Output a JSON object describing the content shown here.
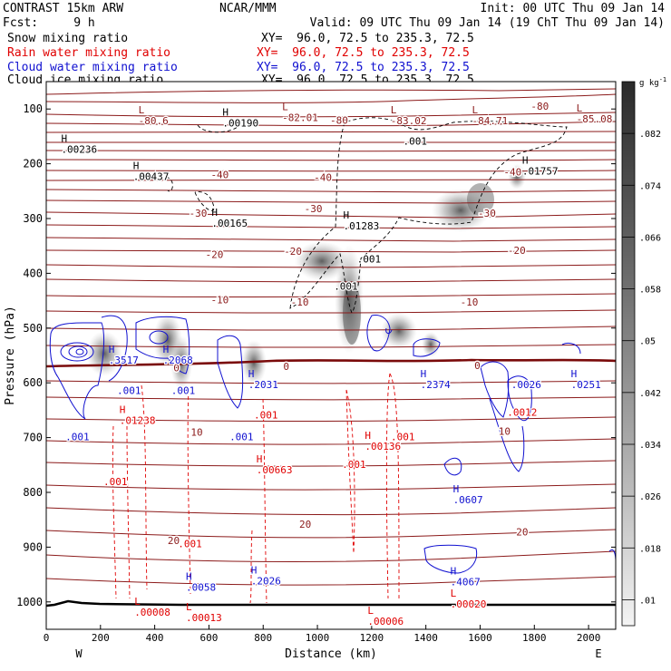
{
  "header": {
    "left_line1": "CONTRAST 15km ARW",
    "center_line1": "NCAR/MMM",
    "right_line1": "Init: 00 UTC Thu 09 Jan 14",
    "left_line2": "Fcst:     9 h",
    "right_line2": "Valid: 09 UTC Thu 09 Jan 14 (19 ChT Thu 09 Jan 14)",
    "fields": [
      {
        "name": "Snow mixing ratio",
        "xy": "XY=  96.0, 72.5 to 235.3, 72.5",
        "color": "#000000"
      },
      {
        "name": "Rain water mixing ratio",
        "xy": "XY=  96.0, 72.5 to 235.3, 72.5",
        "color": "#e00000"
      },
      {
        "name": "Cloud water mixing ratio",
        "xy": "XY=  96.0, 72.5 to 235.3, 72.5",
        "color": "#1010d0"
      },
      {
        "name": "Cloud ice mixing ratio",
        "xy": "XY=  96.0, 72.5 to 235.3, 72.5",
        "color": "#000000"
      }
    ]
  },
  "chart_data": {
    "type": "contour cross-section",
    "xlabel": "Distance (km)",
    "ylabel": "Pressure (hPa)",
    "xlim": [
      0,
      2100
    ],
    "ylim": [
      1050,
      50
    ],
    "x_ticks": [
      0,
      200,
      400,
      600,
      800,
      1000,
      1200,
      1400,
      1600,
      1800,
      2000
    ],
    "y_ticks": [
      100,
      200,
      300,
      400,
      500,
      600,
      700,
      800,
      900,
      1000
    ],
    "x_end_labels": {
      "left": "W",
      "right": "E"
    },
    "colorbar": {
      "unit": "g kg",
      "unit_exp": "-1",
      "ticks": [
        ".082",
        ".074",
        ".066",
        ".058",
        ".05",
        ".042",
        ".034",
        ".026",
        ".018",
        ".01"
      ]
    },
    "temperature_contours": [
      {
        "value": "-80",
        "x": 1080,
        "p": 120
      },
      {
        "value": "-80",
        "x": 1820,
        "p": 95
      },
      {
        "value": "-40",
        "x": 640,
        "p": 220
      },
      {
        "value": "-40",
        "x": 1020,
        "p": 225
      },
      {
        "value": "-40",
        "x": 1720,
        "p": 215
      },
      {
        "value": "-30",
        "x": 560,
        "p": 290
      },
      {
        "value": "-30",
        "x": 985,
        "p": 282
      },
      {
        "value": "-30",
        "x": 1625,
        "p": 290
      },
      {
        "value": "-20",
        "x": 620,
        "p": 365
      },
      {
        "value": "-20",
        "x": 910,
        "p": 360
      },
      {
        "value": "-20",
        "x": 1735,
        "p": 358
      },
      {
        "value": "-10",
        "x": 640,
        "p": 448
      },
      {
        "value": "-10",
        "x": 935,
        "p": 452
      },
      {
        "value": "-10",
        "x": 1560,
        "p": 452
      },
      {
        "value": "0",
        "x": 480,
        "p": 572
      },
      {
        "value": "0",
        "x": 885,
        "p": 570
      },
      {
        "value": "0",
        "x": 1590,
        "p": 568
      },
      {
        "value": "10",
        "x": 555,
        "p": 690
      },
      {
        "value": "10",
        "x": 1690,
        "p": 688
      },
      {
        "value": "20",
        "x": 470,
        "p": 888
      },
      {
        "value": "20",
        "x": 955,
        "p": 858
      },
      {
        "value": "20",
        "x": 1755,
        "p": 872
      }
    ],
    "extrema": [
      {
        "kind": "L",
        "value": "-80.6",
        "x": 340,
        "p": 108,
        "color": "#8b1a1a"
      },
      {
        "kind": "L",
        "value": "-82.01",
        "x": 870,
        "p": 102,
        "color": "#8b1a1a"
      },
      {
        "kind": "L",
        "value": "-83.02",
        "x": 1270,
        "p": 108,
        "color": "#8b1a1a"
      },
      {
        "kind": "L",
        "value": "-84.71",
        "x": 1570,
        "p": 108,
        "color": "#8b1a1a"
      },
      {
        "kind": "L",
        "value": "-85.08",
        "x": 1955,
        "p": 105,
        "color": "#8b1a1a"
      },
      {
        "kind": "H",
        "value": ".00236",
        "x": 55,
        "p": 160,
        "color": "#000000"
      },
      {
        "kind": "H",
        "value": ".00190",
        "x": 650,
        "p": 112,
        "color": "#000000"
      },
      {
        "kind": "H",
        "value": ".00437",
        "x": 320,
        "p": 210,
        "color": "#000000"
      },
      {
        "kind": "H",
        "value": ".00165",
        "x": 610,
        "p": 295,
        "color": "#000000"
      },
      {
        "kind": "H",
        "value": ".01283",
        "x": 1095,
        "p": 300,
        "color": "#000000"
      },
      {
        "kind": "H",
        "value": ".01757",
        "x": 1755,
        "p": 200,
        "color": "#000000"
      },
      {
        "kind": "H",
        "value": ".3517",
        "x": 230,
        "p": 545,
        "color": "#1010d0"
      },
      {
        "kind": "H",
        "value": ".2068",
        "x": 430,
        "p": 545,
        "color": "#1010d0"
      },
      {
        "kind": "H",
        "value": ".2031",
        "x": 745,
        "p": 590,
        "color": "#1010d0"
      },
      {
        "kind": "H",
        "value": ".2374",
        "x": 1380,
        "p": 590,
        "color": "#1010d0"
      },
      {
        "kind": "H",
        "value": ".0251",
        "x": 1935,
        "p": 590,
        "color": "#1010d0"
      },
      {
        "kind": "H",
        "value": ".0607",
        "x": 1500,
        "p": 800,
        "color": "#1010d0"
      },
      {
        "kind": "H",
        "value": ".0058",
        "x": 515,
        "p": 960,
        "color": "#1010d0"
      },
      {
        "kind": "H",
        "value": ".2026",
        "x": 755,
        "p": 948,
        "color": "#1010d0"
      },
      {
        "kind": "H",
        "value": ".4067",
        "x": 1490,
        "p": 950,
        "color": "#1010d0"
      },
      {
        "kind": "H",
        "value": ".01238",
        "x": 270,
        "p": 655,
        "color": "#e00000"
      },
      {
        "kind": "H",
        "value": ".00136",
        "x": 1175,
        "p": 702,
        "color": "#e00000"
      },
      {
        "kind": "H",
        "value": ".00663",
        "x": 775,
        "p": 745,
        "color": "#e00000"
      },
      {
        "kind": "L",
        "value": ".00008",
        "x": 325,
        "p": 1005,
        "color": "#e00000"
      },
      {
        "kind": "L",
        "value": ".00013",
        "x": 515,
        "p": 1015,
        "color": "#e00000"
      },
      {
        "kind": "L",
        "value": ".00006",
        "x": 1185,
        "p": 1022,
        "color": "#e00000"
      },
      {
        "kind": "L",
        "value": ".00020",
        "x": 1490,
        "p": 990,
        "color": "#e00000"
      }
    ],
    "small_labels": [
      {
        "text": ".001",
        "x": 1360,
        "p": 165,
        "color": "#000000"
      },
      {
        "text": ".001",
        "x": 1190,
        "p": 380,
        "color": "#000000"
      },
      {
        "text": ".001",
        "x": 1105,
        "p": 430,
        "color": "#000000"
      },
      {
        "text": ".001",
        "x": 305,
        "p": 620,
        "color": "#1010d0"
      },
      {
        "text": ".001",
        "x": 505,
        "p": 620,
        "color": "#1010d0"
      },
      {
        "text": ".001",
        "x": 115,
        "p": 705,
        "color": "#1010d0"
      },
      {
        "text": ".001",
        "x": 720,
        "p": 705,
        "color": "#1010d0"
      },
      {
        "text": ".001",
        "x": 810,
        "p": 665,
        "color": "#e00000"
      },
      {
        "text": ".001",
        "x": 1315,
        "p": 705,
        "color": "#e00000"
      },
      {
        "text": ".001",
        "x": 1135,
        "p": 755,
        "color": "#e00000"
      },
      {
        "text": ".001",
        "x": 255,
        "p": 787,
        "color": "#e00000"
      },
      {
        "text": ".001",
        "x": 530,
        "p": 900,
        "color": "#e00000"
      },
      {
        "text": ".0026",
        "x": 1770,
        "p": 610,
        "color": "#1010d0"
      },
      {
        "text": ".0012",
        "x": 1755,
        "p": 660,
        "color": "#e00000"
      }
    ]
  }
}
